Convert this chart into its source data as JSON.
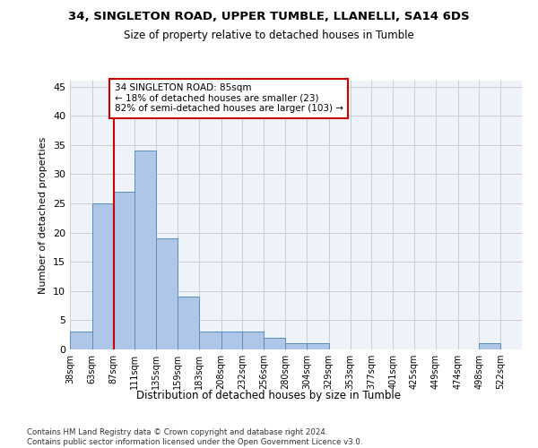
{
  "title1": "34, SINGLETON ROAD, UPPER TUMBLE, LLANELLI, SA14 6DS",
  "title2": "Size of property relative to detached houses in Tumble",
  "xlabel": "Distribution of detached houses by size in Tumble",
  "ylabel": "Number of detached properties",
  "bar_color": "#aec6e8",
  "bar_edge_color": "#5b8db8",
  "grid_color": "#cccccc",
  "background_color": "#eef3fa",
  "bin_labels": [
    "38sqm",
    "63sqm",
    "87sqm",
    "111sqm",
    "135sqm",
    "159sqm",
    "183sqm",
    "208sqm",
    "232sqm",
    "256sqm",
    "280sqm",
    "304sqm",
    "329sqm",
    "353sqm",
    "377sqm",
    "401sqm",
    "425sqm",
    "449sqm",
    "474sqm",
    "498sqm",
    "522sqm"
  ],
  "bar_values": [
    3,
    25,
    27,
    34,
    19,
    9,
    3,
    3,
    3,
    2,
    1,
    1,
    0,
    0,
    0,
    0,
    0,
    0,
    0,
    1,
    0
  ],
  "bin_edges": [
    38,
    63,
    87,
    111,
    135,
    159,
    183,
    208,
    232,
    256,
    280,
    304,
    329,
    353,
    377,
    401,
    425,
    449,
    474,
    498,
    522,
    546
  ],
  "vline_x": 87,
  "annotation_text": "34 SINGLETON ROAD: 85sqm\n← 18% of detached houses are smaller (23)\n82% of semi-detached houses are larger (103) →",
  "annotation_box_color": "#ffffff",
  "annotation_box_edge": "#cc0000",
  "vline_color": "#cc0000",
  "yticks": [
    0,
    5,
    10,
    15,
    20,
    25,
    30,
    35,
    40,
    45
  ],
  "ylim": [
    0,
    46
  ],
  "footnote": "Contains HM Land Registry data © Crown copyright and database right 2024.\nContains public sector information licensed under the Open Government Licence v3.0."
}
